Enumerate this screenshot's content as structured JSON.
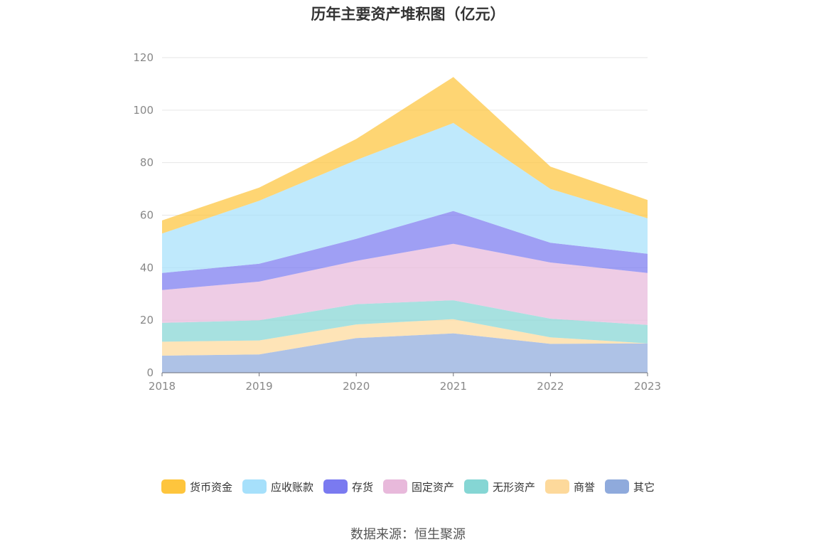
{
  "chart_data": {
    "type": "area",
    "stacked": true,
    "title": "历年主要资产堆积图（亿元）",
    "x": [
      "2018",
      "2019",
      "2020",
      "2021",
      "2022",
      "2023"
    ],
    "ylim": [
      0,
      120
    ],
    "yticks": [
      0,
      20,
      40,
      60,
      80,
      100,
      120
    ],
    "grid": true,
    "legend_position": "bottom",
    "series": [
      {
        "name": "其它",
        "color": "#8faadc",
        "values": [
          6.5,
          7,
          13.2,
          15,
          11,
          11.2
        ]
      },
      {
        "name": "商誉",
        "color": "#fdd99b",
        "values": [
          5.3,
          5.3,
          5.2,
          5.4,
          2.5,
          0
        ]
      },
      {
        "name": "无形资产",
        "color": "#85d6d4",
        "values": [
          7.2,
          7.7,
          7.7,
          7.2,
          7.1,
          7
        ]
      },
      {
        "name": "固定资产",
        "color": "#e8b9db",
        "values": [
          12.5,
          14.7,
          16.5,
          21.5,
          21.4,
          19.8
        ]
      },
      {
        "name": "存货",
        "color": "#7a7af0",
        "values": [
          6.5,
          6.8,
          8.4,
          12.5,
          7.5,
          7.3
        ]
      },
      {
        "name": "应收账款",
        "color": "#a6e0fb",
        "values": [
          15,
          24,
          30,
          33.5,
          20.5,
          13.5
        ]
      },
      {
        "name": "货币资金",
        "color": "#fec53d",
        "values": [
          5,
          5,
          8,
          17.5,
          8.5,
          7
        ]
      }
    ]
  },
  "legend_order": [
    "货币资金",
    "应收账款",
    "存货",
    "固定资产",
    "无形资产",
    "商誉",
    "其它"
  ],
  "source_text": "数据来源：恒生聚源"
}
